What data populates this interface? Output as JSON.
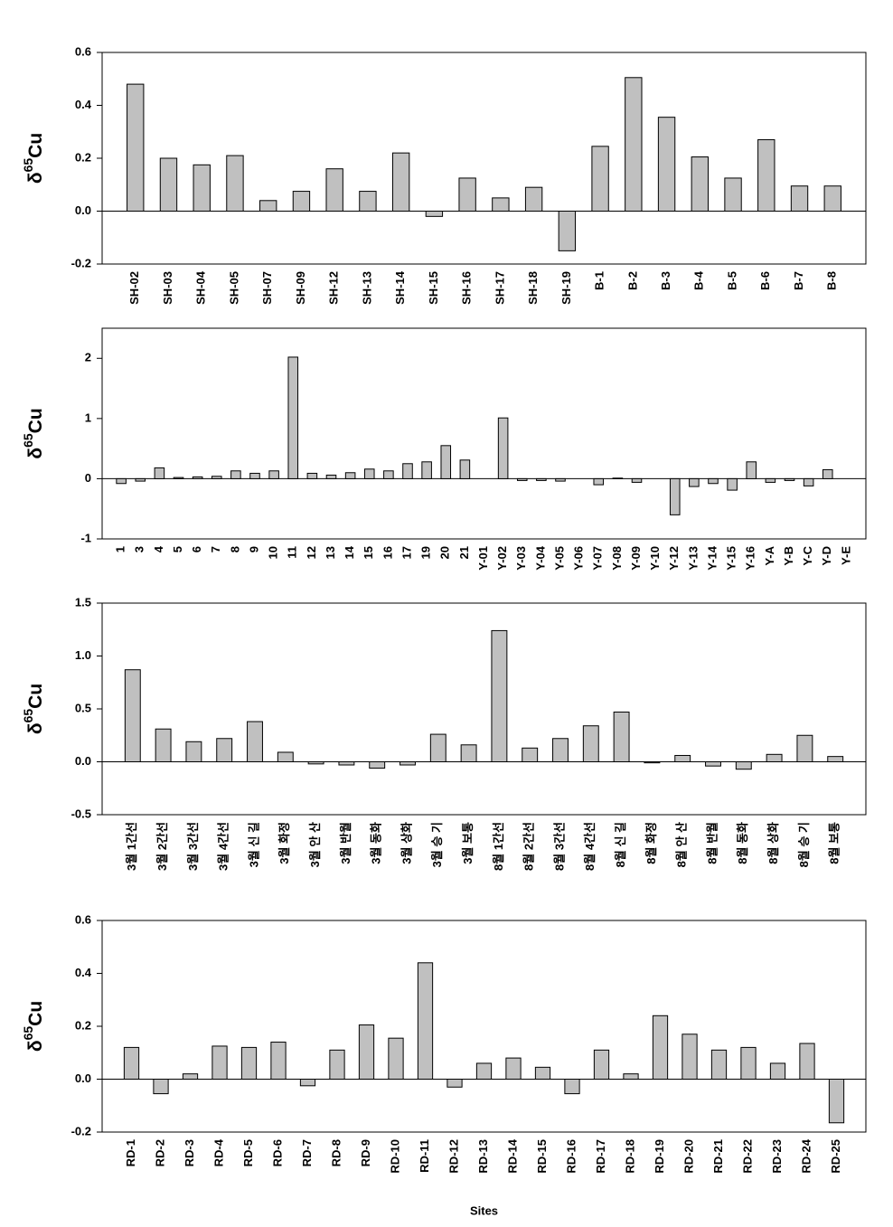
{
  "chart_data": [
    {
      "type": "bar",
      "ylabel": [
        "δ",
        "65",
        "Cu"
      ],
      "categories": [
        "SH-02",
        "SH-03",
        "SH-04",
        "SH-05",
        "SH-07",
        "SH-09",
        "SH-12",
        "SH-13",
        "SH-14",
        "SH-15",
        "SH-16",
        "SH-17",
        "SH-18",
        "SH-19",
        "B-1",
        "B-2",
        "B-3",
        "B-4",
        "B-5",
        "B-6",
        "B-7",
        "B-8"
      ],
      "values": [
        0.48,
        0.2,
        0.175,
        0.21,
        0.04,
        0.075,
        0.16,
        0.075,
        0.22,
        -0.02,
        0.125,
        0.05,
        0.09,
        -0.15,
        0.245,
        0.505,
        0.355,
        0.205,
        0.125,
        0.27,
        0.095,
        0.095
      ],
      "color": "#c0c0c0",
      "ylim": [
        -0.2,
        0.6
      ],
      "yticks": [
        -0.2,
        {
          "value": 0,
          "label": "0.0"
        },
        0.2,
        0.4,
        0.6
      ]
    },
    {
      "type": "bar",
      "ylabel": [
        "δ",
        "65",
        "Cu"
      ],
      "categories": [
        "1",
        "3",
        "4",
        "5",
        "6",
        "7",
        "8",
        "9",
        "10",
        "11",
        "12",
        "13",
        "14",
        "15",
        "16",
        "17",
        "19",
        "20",
        "21",
        "Y-01",
        "Y-02",
        "Y-03",
        "Y-04",
        "Y-05",
        "Y-06",
        "Y-07",
        "Y-08",
        "Y-09",
        "Y-10",
        "Y-12",
        "Y-13",
        "Y-14",
        "Y-15",
        "Y-16",
        "Y-A",
        "Y-B",
        "Y-C",
        "Y-D",
        "Y-E"
      ],
      "values": [
        -0.08,
        -0.04,
        0.18,
        0.02,
        0.03,
        0.04,
        0.13,
        0.09,
        0.13,
        2.02,
        0.09,
        0.06,
        0.1,
        0.16,
        0.13,
        0.25,
        0.28,
        0.55,
        0.31,
        null,
        1.01,
        -0.03,
        -0.03,
        -0.04,
        null,
        -0.1,
        0.01,
        -0.06,
        null,
        -0.6,
        -0.13,
        -0.08,
        -0.19,
        0.28,
        -0.06,
        -0.03,
        -0.12,
        0.15,
        null
      ],
      "color": "#c0c0c0",
      "ylim": [
        -1,
        2.5
      ],
      "yticks": [
        -1,
        0,
        1,
        2
      ]
    },
    {
      "type": "bar",
      "ylabel": [
        "δ",
        "65",
        "Cu"
      ],
      "categories": [
        "3월 1간선",
        "3월 2간선",
        "3월 3간선",
        "3월 4간선",
        "3월 신 길",
        "3월 화정",
        "3월 안 산",
        "3월 반월",
        "3월 동화",
        "3월 상화",
        "3월 승 기",
        "3월 보통",
        "8월 1간선",
        "8월 2간선",
        "8월 3간선",
        "8월 4간선",
        "8월 신 길",
        "8월 화정",
        "8월 안 산",
        "8월 반월",
        "8월 동화",
        "8월 상화",
        "8월 승 기",
        "8월 보통"
      ],
      "values": [
        0.87,
        0.31,
        0.19,
        0.22,
        0.38,
        0.09,
        -0.02,
        -0.03,
        -0.06,
        -0.03,
        0.26,
        0.16,
        1.24,
        0.13,
        0.22,
        0.34,
        0.47,
        -0.01,
        0.06,
        -0.04,
        -0.07,
        0.07,
        0.25,
        0.05
      ],
      "color": "#c0c0c0",
      "ylim": [
        -0.5,
        1.5
      ],
      "yticks": [
        -0.5,
        {
          "value": 0,
          "label": "0.0"
        },
        0.5,
        {
          "value": 1,
          "label": "1.0"
        },
        1.5
      ]
    },
    {
      "type": "bar",
      "ylabel": [
        "δ",
        "65",
        "Cu"
      ],
      "xlabel": "Sites",
      "categories": [
        "RD-1",
        "RD-2",
        "RD-3",
        "RD-4",
        "RD-5",
        "RD-6",
        "RD-7",
        "RD-8",
        "RD-9",
        "RD-10",
        "RD-11",
        "RD-12",
        "RD-13",
        "RD-14",
        "RD-15",
        "RD-16",
        "RD-17",
        "RD-18",
        "RD-19",
        "RD-20",
        "RD-21",
        "RD-22",
        "RD-23",
        "RD-24",
        "RD-25"
      ],
      "values": [
        0.12,
        -0.055,
        0.02,
        0.125,
        0.12,
        0.14,
        -0.025,
        0.11,
        0.205,
        0.155,
        0.44,
        -0.03,
        0.06,
        0.08,
        0.045,
        -0.055,
        0.11,
        0.02,
        0.24,
        0.17,
        0.11,
        0.12,
        0.06,
        0.135,
        -0.165
      ],
      "color": "#c0c0c0",
      "ylim": [
        -0.2,
        0.6
      ],
      "yticks": [
        -0.2,
        {
          "value": 0,
          "label": "0.0"
        },
        0.2,
        0.4,
        0.6
      ]
    }
  ]
}
